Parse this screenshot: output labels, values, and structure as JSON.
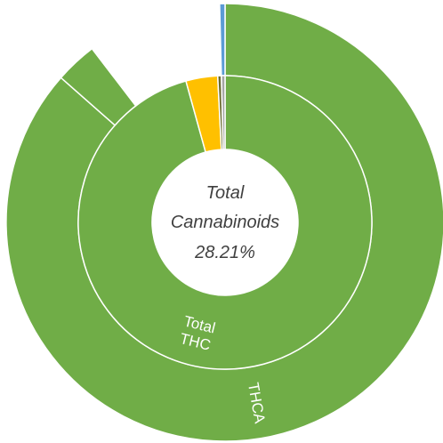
{
  "chart_data": {
    "type": "sunburst",
    "center_label": {
      "line1": "Total",
      "line2": "Cannabinoids",
      "value": "28.21%"
    },
    "inner_ring": [
      {
        "label": "Total THC",
        "value": 95.7,
        "color": "#70ad47",
        "show_label": true
      },
      {
        "label": "",
        "value": 3.5,
        "color": "#ffc000",
        "show_label": false
      },
      {
        "label": "",
        "value": 0.4,
        "color": "#6a6a30",
        "show_label": false
      },
      {
        "label": "",
        "value": 0.4,
        "color": "#a5a5a5",
        "show_label": false
      }
    ],
    "outer_ring": [
      {
        "label": "THCA",
        "value": 86.5,
        "color": "#70ad47",
        "show_label": true
      },
      {
        "label": "",
        "value": 3.1,
        "color": "#70ad47",
        "show_label": false
      },
      {
        "label": "",
        "value": 6.1,
        "color": "#ffffff",
        "show_label": false
      },
      {
        "label": "",
        "value": 3.5,
        "color": "#ffffff",
        "show_label": false
      },
      {
        "label": "",
        "value": 0.4,
        "color": "#ffffff",
        "show_label": false
      },
      {
        "label": "",
        "value": 0.4,
        "color": "#5b9bd5",
        "show_label": false
      }
    ]
  }
}
